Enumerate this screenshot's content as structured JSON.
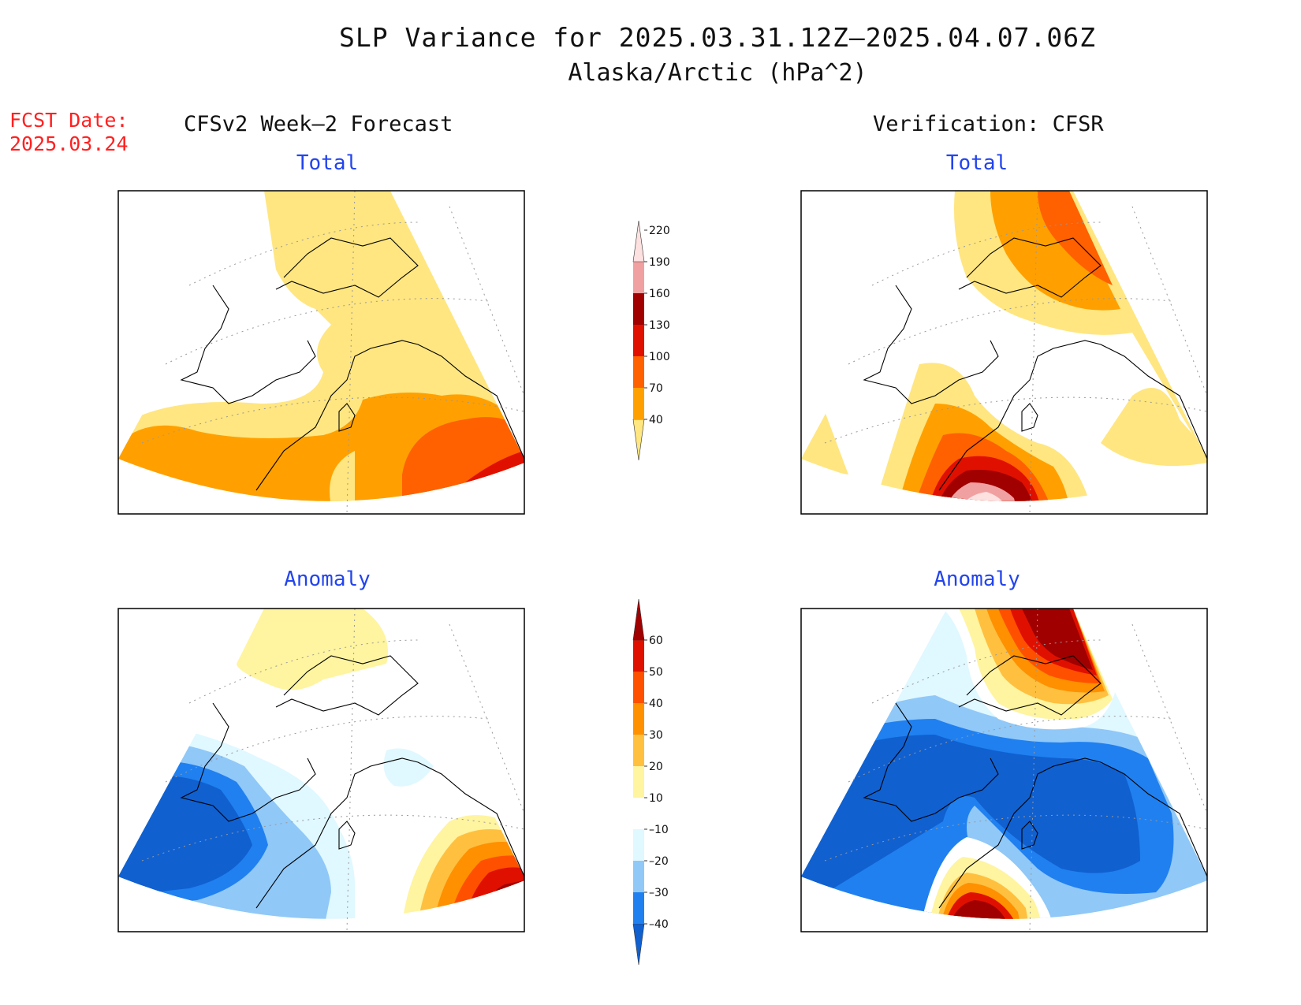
{
  "header": {
    "title": "SLP Variance for 2025.03.31.12Z–2025.04.07.06Z",
    "subtitle": "Alaska/Arctic (hPa^2)"
  },
  "fcst": {
    "label": "FCST Date:",
    "date": "2025.03.24"
  },
  "columns": {
    "left": "CFSv2 Week–2 Forecast",
    "right": "Verification: CFSR"
  },
  "panels": {
    "top_left": "Total",
    "top_right": "Total",
    "bottom_left": "Anomaly",
    "bottom_right": "Anomaly"
  },
  "colorbars": {
    "total": {
      "ticks": [
        "40",
        "70",
        "100",
        "130",
        "160",
        "190",
        "220"
      ],
      "colors": [
        "#ffe680",
        "#ffa000",
        "#ff6000",
        "#e01000",
        "#a00000",
        "#f0a0a0",
        "#fde0e0"
      ]
    },
    "anomaly": {
      "ticks": [
        "–40",
        "–30",
        "–20",
        "–10",
        "10",
        "20",
        "30",
        "40",
        "50",
        "60"
      ],
      "colors": [
        "#1060d0",
        "#2080f0",
        "#90c8f8",
        "#e0f8ff",
        "#ffffff",
        "#fff4a0",
        "#ffc040",
        "#ff9000",
        "#ff5000",
        "#e01000",
        "#a00000"
      ]
    }
  }
}
